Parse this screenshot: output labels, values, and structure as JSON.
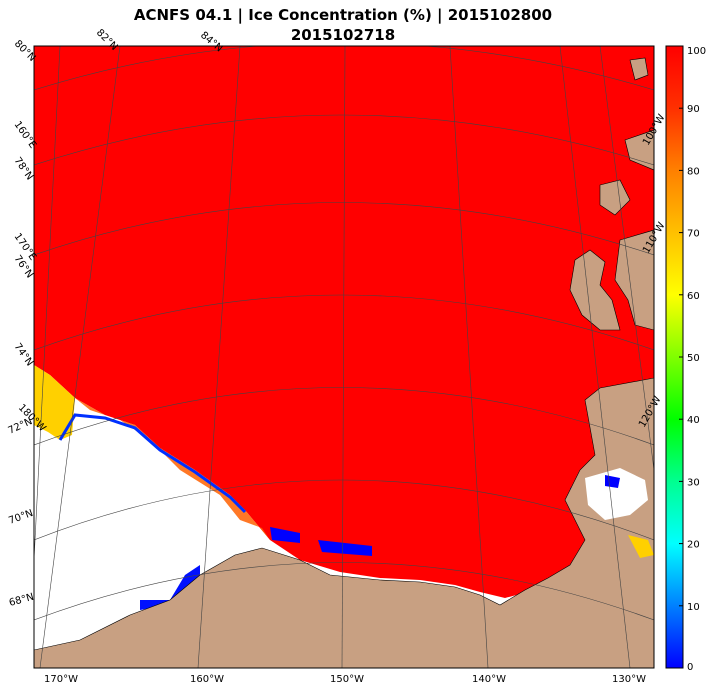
{
  "title": {
    "line1": "ACNFS 04.1  |  Ice Concentration (%)  |  2015102800",
    "line2": "2015102718"
  },
  "lat_labels": [
    "80°N",
    "82°N",
    "84°N",
    "160°E",
    "78°N",
    "170°E",
    "76°N",
    "74°N",
    "180°W",
    "72°N",
    "70°N",
    "68°N"
  ],
  "lon_labels": [
    "170°W",
    "160°W",
    "150°W",
    "140°W",
    "130°W",
    "120°W",
    "110°W",
    "100°W"
  ],
  "colorbar": {
    "min": 0,
    "max": 100,
    "ticks": [
      "100",
      "90",
      "80",
      "70",
      "60",
      "50",
      "40",
      "30",
      "20",
      "10",
      "0"
    ],
    "colors": [
      "#0000ff",
      "#00b0ff",
      "#00ffff",
      "#00ff80",
      "#00ff00",
      "#80ff00",
      "#ffff00",
      "#ffc000",
      "#ff8000",
      "#ff3000",
      "#ff0000"
    ]
  },
  "palette": {
    "ice_full": "#ff0000",
    "ice_edge_orange": "#ff6000",
    "ice_edge_yellow": "#ffe000",
    "low_ice_blue": "#0000ff",
    "land": "#c8a082",
    "open_water": "#ffffff",
    "graticule": "#444444"
  }
}
